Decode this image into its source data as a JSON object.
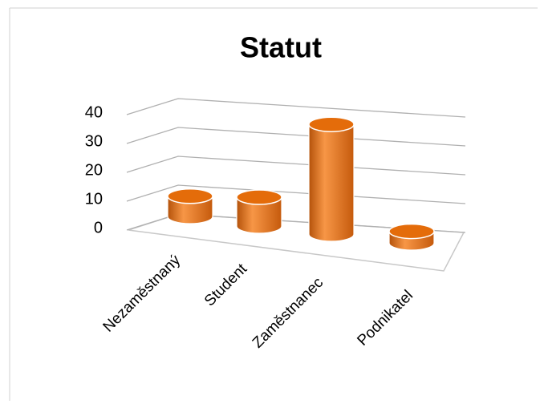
{
  "chart_data": {
    "type": "bar3d",
    "title": "Statut",
    "categories": [
      "Nezaměstnaný",
      "Student",
      "Zaměstnanec",
      "Podnikatel"
    ],
    "values": [
      7,
      10,
      38,
      4
    ],
    "color": "#e46c0a",
    "ylim": [
      0,
      40
    ],
    "yticks": [
      0,
      10,
      20,
      30,
      40
    ],
    "grid": true
  }
}
